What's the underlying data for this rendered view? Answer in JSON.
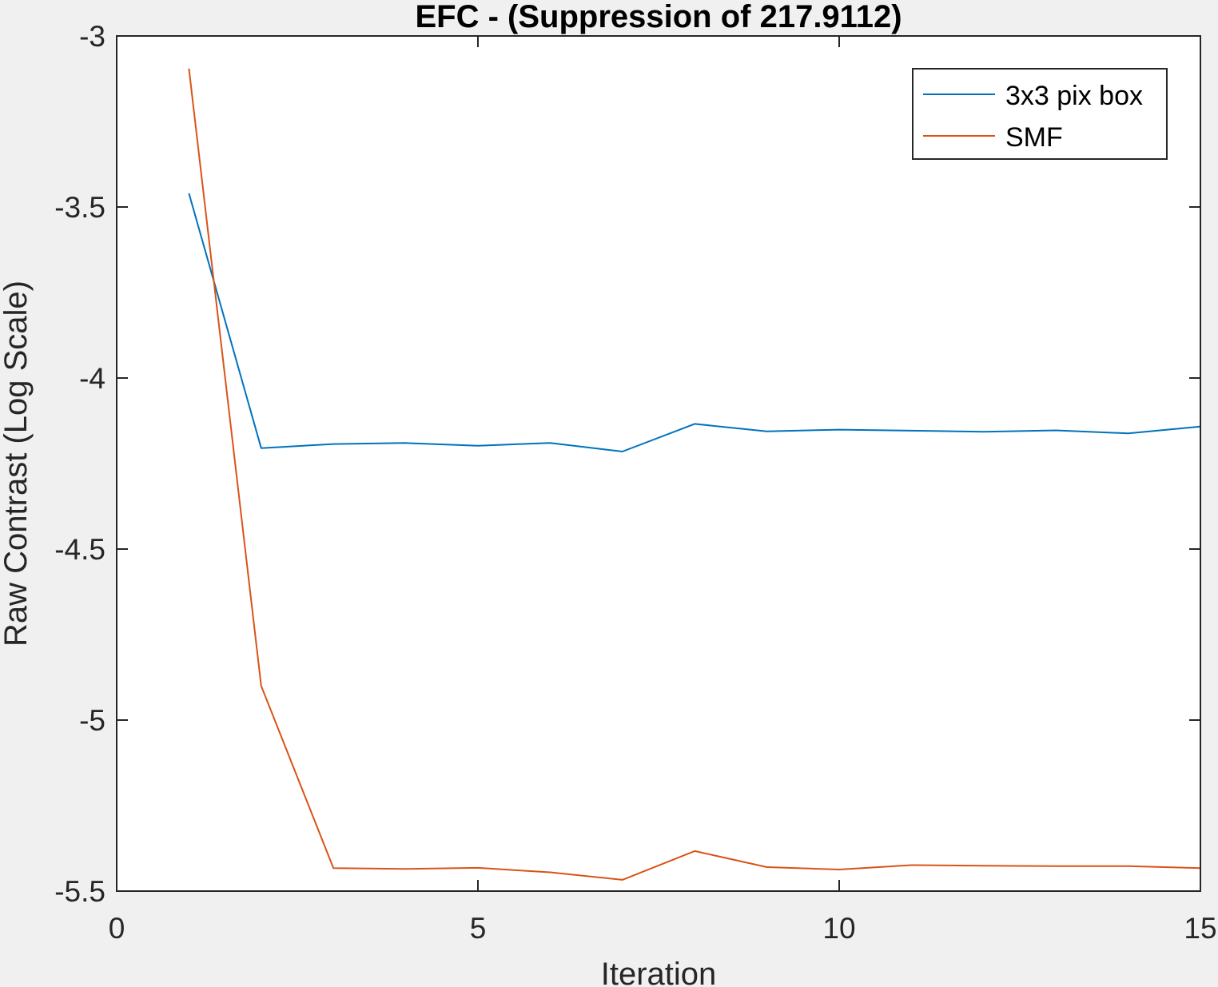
{
  "chart_data": {
    "type": "line",
    "title": "EFC -  (Suppression of 217.9112)",
    "xlabel": "Iteration",
    "ylabel": "Raw Contrast (Log Scale)",
    "xlim": [
      0,
      15
    ],
    "ylim": [
      -5.5,
      -3
    ],
    "xticks": [
      0,
      5,
      10,
      15
    ],
    "xtick_labels": [
      "0",
      "5",
      "10",
      "15"
    ],
    "yticks": [
      -3,
      -3.5,
      -4,
      -4.5,
      -5,
      -5.5
    ],
    "ytick_labels": [
      "-3",
      "-3.5",
      "-4",
      "-4.5",
      "-5",
      "-5.5"
    ],
    "grid": false,
    "legend_position": "top-right",
    "x": [
      1,
      2,
      3,
      4,
      5,
      6,
      7,
      8,
      9,
      10,
      11,
      12,
      13,
      14,
      15
    ],
    "series": [
      {
        "name": "3x3 pix box",
        "color": "#0072bd",
        "values": [
          -3.46,
          -4.205,
          -4.193,
          -4.19,
          -4.198,
          -4.19,
          -4.215,
          -4.134,
          -4.156,
          -4.151,
          -4.154,
          -4.157,
          -4.153,
          -4.162,
          -4.142
        ]
      },
      {
        "name": "SMF",
        "color": "#d95319",
        "values": [
          -3.095,
          -4.9,
          -5.433,
          -5.435,
          -5.432,
          -5.445,
          -5.467,
          -5.383,
          -5.43,
          -5.437,
          -5.424,
          -5.426,
          -5.427,
          -5.427,
          -5.433
        ]
      }
    ]
  }
}
